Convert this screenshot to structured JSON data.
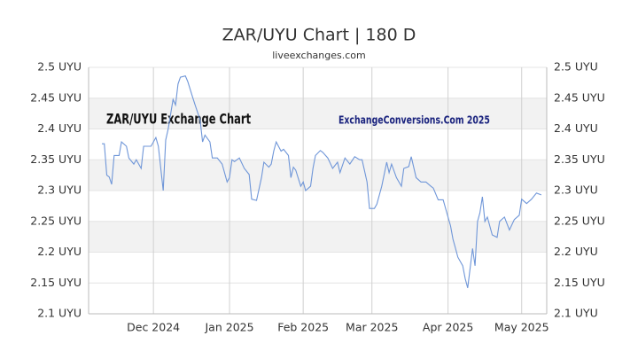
{
  "chart_data": {
    "type": "line",
    "title": "ZAR/UYU Chart | 180 D",
    "subtitle": "liveexchanges.com",
    "annotations": [
      "ZAR/UYU Exchange Chart",
      "ExchangeConversions.Com 2025"
    ],
    "x": [
      0,
      1,
      2,
      3,
      4,
      5,
      7,
      8,
      10,
      11,
      13,
      14,
      16,
      17,
      18,
      20,
      22,
      23,
      25,
      26,
      27,
      29,
      30,
      31,
      32,
      34,
      35,
      37,
      38,
      40,
      41,
      42,
      44,
      45,
      47,
      49,
      51,
      52,
      53,
      54,
      56,
      58,
      60,
      61,
      63,
      65,
      66,
      68,
      69,
      70,
      71,
      73,
      74,
      76,
      77,
      78,
      79,
      81,
      82,
      83,
      85,
      86,
      87,
      89,
      90,
      92,
      94,
      96,
      97,
      99,
      101,
      103,
      105,
      106,
      108,
      109,
      111,
      112,
      114,
      116,
      117,
      118,
      120,
      122,
      123,
      125,
      126,
      128,
      130,
      132,
      134,
      135,
      137,
      139,
      141,
      142,
      143,
      144,
      145,
      147,
      148,
      149,
      151,
      152,
      153,
      154,
      155,
      156,
      157,
      159,
      161,
      162,
      164,
      166,
      168,
      170,
      171,
      173,
      175,
      177,
      179
    ],
    "series": [
      {
        "name": "ZAR/UYU",
        "color": "#6f96d8",
        "values": [
          2.376,
          2.376,
          2.325,
          2.322,
          2.31,
          2.357,
          2.357,
          2.379,
          2.372,
          2.353,
          2.343,
          2.35,
          2.336,
          2.372,
          2.372,
          2.372,
          2.386,
          2.372,
          2.3,
          2.382,
          2.4,
          2.448,
          2.439,
          2.473,
          2.484,
          2.486,
          2.477,
          2.451,
          2.439,
          2.415,
          2.379,
          2.39,
          2.379,
          2.353,
          2.353,
          2.343,
          2.314,
          2.321,
          2.35,
          2.347,
          2.353,
          2.336,
          2.326,
          2.286,
          2.284,
          2.321,
          2.346,
          2.338,
          2.343,
          2.364,
          2.379,
          2.364,
          2.367,
          2.357,
          2.321,
          2.338,
          2.333,
          2.307,
          2.314,
          2.3,
          2.307,
          2.336,
          2.357,
          2.365,
          2.362,
          2.353,
          2.336,
          2.346,
          2.329,
          2.353,
          2.343,
          2.355,
          2.35,
          2.35,
          2.314,
          2.271,
          2.271,
          2.278,
          2.307,
          2.346,
          2.329,
          2.343,
          2.321,
          2.307,
          2.336,
          2.339,
          2.355,
          2.321,
          2.314,
          2.314,
          2.307,
          2.304,
          2.285,
          2.285,
          2.257,
          2.243,
          2.221,
          2.207,
          2.192,
          2.178,
          2.157,
          2.142,
          2.206,
          2.178,
          2.25,
          2.264,
          2.29,
          2.25,
          2.257,
          2.228,
          2.224,
          2.25,
          2.257,
          2.236,
          2.253,
          2.26,
          2.286,
          2.279,
          2.286,
          2.296,
          2.293
        ]
      }
    ],
    "xlim": [
      -5.4,
      181.2
    ],
    "xticks": [
      {
        "value": 21,
        "label": "Dec 2024"
      },
      {
        "value": 52,
        "label": "Jan 2025"
      },
      {
        "value": 82,
        "label": "Feb 2025"
      },
      {
        "value": 110,
        "label": "Mar 2025"
      },
      {
        "value": 141,
        "label": "Apr 2025"
      },
      {
        "value": 171,
        "label": "May 2025"
      }
    ],
    "ylim": [
      2.1,
      2.5
    ],
    "yticks": [
      {
        "value": 2.1,
        "label": "2.1 UYU"
      },
      {
        "value": 2.15,
        "label": "2.15 UYU"
      },
      {
        "value": 2.2,
        "label": "2.2 UYU"
      },
      {
        "value": 2.25,
        "label": "2.25 UYU"
      },
      {
        "value": 2.3,
        "label": "2.3 UYU"
      },
      {
        "value": 2.35,
        "label": "2.35 UYU"
      },
      {
        "value": 2.4,
        "label": "2.4 UYU"
      },
      {
        "value": 2.45,
        "label": "2.45 UYU"
      },
      {
        "value": 2.5,
        "label": "2.5 UYU"
      }
    ],
    "grid": true
  }
}
